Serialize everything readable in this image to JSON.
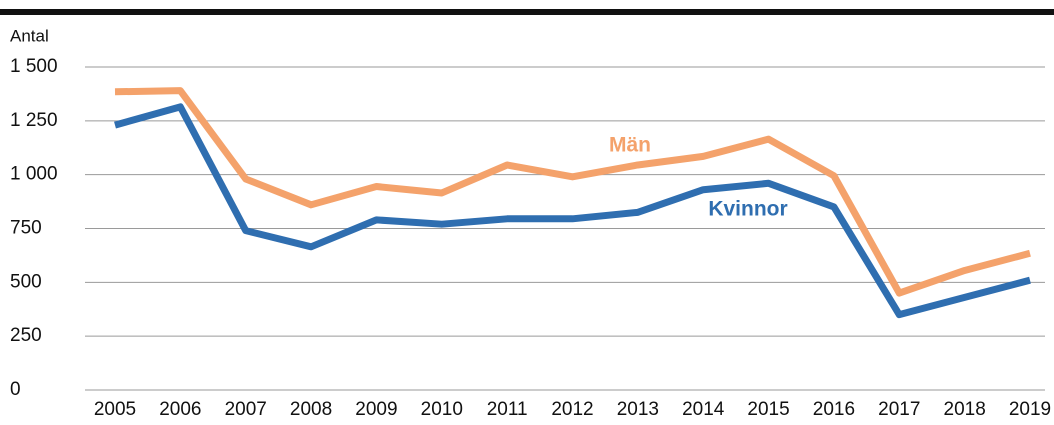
{
  "chart_data": {
    "type": "line",
    "ylabel": "Antal",
    "categories": [
      "2005",
      "2006",
      "2007",
      "2008",
      "2009",
      "2010",
      "2011",
      "2012",
      "2013",
      "2014",
      "2015",
      "2016",
      "2017",
      "2018",
      "2019"
    ],
    "series": [
      {
        "name": "Män",
        "color": "#f4a26b",
        "values": [
          1385,
          1390,
          980,
          860,
          945,
          915,
          1045,
          990,
          1045,
          1085,
          1165,
          995,
          450,
          555,
          635
        ]
      },
      {
        "name": "Kvinnor",
        "color": "#2f6eb0",
        "values": [
          1230,
          1315,
          740,
          665,
          790,
          770,
          795,
          795,
          825,
          930,
          960,
          850,
          350,
          430,
          510
        ]
      }
    ],
    "ylim": [
      0,
      1500
    ],
    "yticks": [
      0,
      250,
      500,
      750,
      {
        "value": 1000,
        "label": "1 000"
      },
      {
        "value": 1250,
        "label": "1 250"
      },
      {
        "value": 1500,
        "label": "1 500"
      }
    ],
    "grid": true
  }
}
